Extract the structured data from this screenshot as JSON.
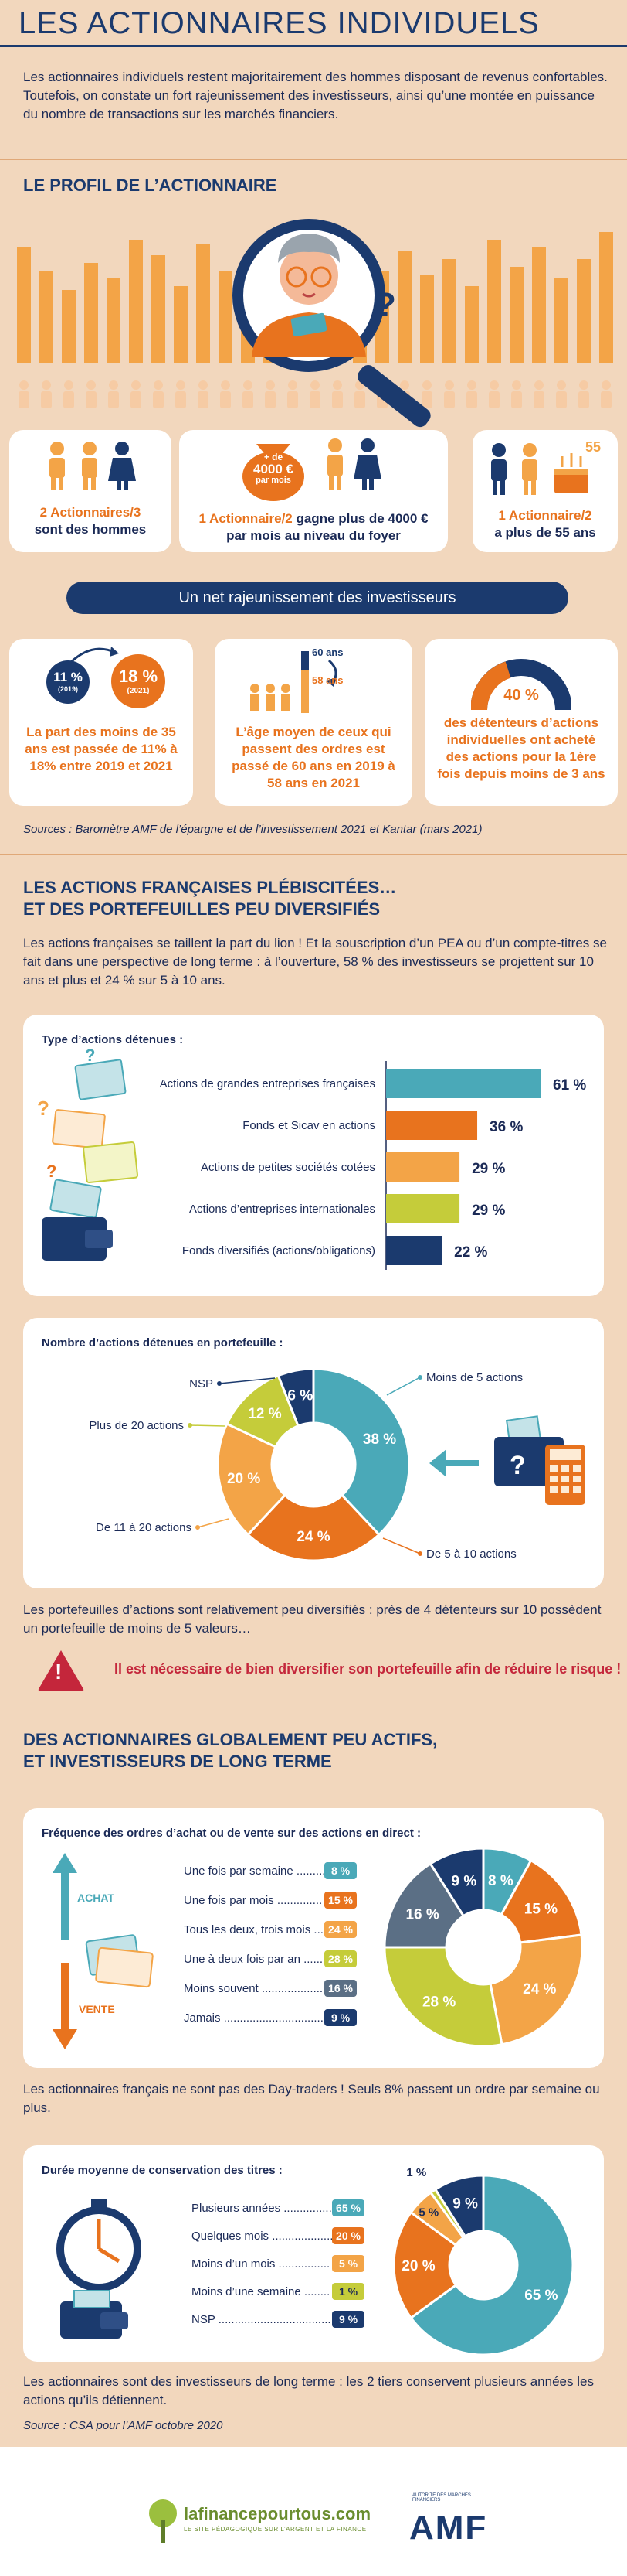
{
  "header": {
    "title": "LES ACTIONNAIRES INDIVIDUELS",
    "intro": "Les actionnaires individuels restent majoritairement des hommes disposant de revenus confortables. Toutefois, on constate un fort rajeunissement des investisseurs, ainsi qu’une montée en puissance du nombre de transactions sur les marchés financiers."
  },
  "profile": {
    "heading": "LE PROFIL DE L’ACTIONNAIRE",
    "question_mark": "?",
    "stat1": {
      "strong": "2 Actionnaires/3",
      "rest": "sont des hommes"
    },
    "bag": {
      "line1": "+ de",
      "line2": "4000 €",
      "line3": "par mois"
    },
    "stat2": {
      "strong": "1 Actionnaire/2",
      "rest": " gagne plus de 4000 € par mois au niveau du foyer"
    },
    "stat3": {
      "strong": "1 Actionnaire/2",
      "rest": "a plus de 55 ans"
    },
    "banner": "Un net rajeunissement des investisseurs",
    "young": {
      "v2019": "11 %",
      "y2019": "(2019)",
      "v2021": "18 %",
      "y2021": "(2021)",
      "text": "La part des moins de 35 ans est passée de 11% à 18% entre 2019 et 2021"
    },
    "age": {
      "a60": "60 ans",
      "a58": "58 ans",
      "text": "L’âge moyen de ceux qui passent des ordres est passé de 60 ans en 2019 à 58 ans en 2021"
    },
    "new": {
      "pct": "40 %",
      "text": "des détenteurs d’actions individuelles ont acheté des actions pour la 1ère fois depuis moins de 3 ans"
    },
    "source": "Sources : Baromètre AMF de l’épargne et de l’investissement 2021 et Kantar (mars 2021)"
  },
  "section2": {
    "heading1": "LES ACTIONS FRANÇAISES PLÉBISCITÉES…",
    "heading2": "ET DES PORTEFEUILLES PEU DIVERSIFIÉS",
    "intro": "Les actions françaises se taillent la part du lion ! Et la souscription d’un PEA ou d’un compte-titres se fait dans une perspective de long terme : à l’ouverture, 58 % des investisseurs se projettent sur 10 ans et plus et 24 % sur 5 à 10 ans.",
    "after": "Les portefeuilles d’actions sont relativement peu diversifiés : près de 4 détenteurs sur 10 possèdent un portefeuille de moins de 5 valeurs…",
    "warning": "Il est nécessaire de bien diversifier son portefeuille afin de réduire le risque !",
    "warning_mark": "!"
  },
  "section3": {
    "heading1": "DES ACTIONNAIRES GLOBALEMENT PEU ACTIFS,",
    "heading2": "ET INVESTISSEURS DE LONG TERME",
    "achat": "ACHAT",
    "vente": "VENTE",
    "after1": "Les actionnaires français ne sont pas des Day-traders ! Seuls 8% passent un ordre par semaine ou plus.",
    "after2": "Les actionnaires sont des investisseurs de long terme : les 2 tiers conservent plusieurs années les actions qu’ils détiennent.",
    "source": "Source : CSA pour l’AMF octobre 2020"
  },
  "footer": {
    "logo1_main": "lafinancepourtous.com",
    "logo1_sub": "LE SITE PÉDAGOGIQUE SUR L’ARGENT ET LA FINANCE",
    "logo2_top": "AUTORITÉ DES MARCHÉS FINANCIERS",
    "logo2_main": "AMF"
  },
  "colors": {
    "navy": "#1b3a6e",
    "orange": "#e8731e",
    "lightorange": "#f3a447",
    "teal": "#4aa9b8",
    "lime": "#c5cc3a",
    "beige": "#f2d7bd"
  },
  "chart_data": [
    {
      "type": "bar",
      "title": "Type d’actions détenues :",
      "categories": [
        "Actions de grandes entreprises françaises",
        "Fonds et Sicav en actions",
        "Actions de petites sociétés cotées",
        "Actions d’entreprises internationales",
        "Fonds diversifiés (actions/obligations)"
      ],
      "values": [
        61,
        36,
        29,
        29,
        22
      ],
      "labels": [
        "61 %",
        "36 %",
        "29 %",
        "29 %",
        "22 %"
      ],
      "colors": [
        "#4aa9b8",
        "#e8731e",
        "#f3a447",
        "#c5cc3a",
        "#1b3a6e"
      ],
      "orientation": "horizontal"
    },
    {
      "type": "pie",
      "title": "Nombre d’actions détenues en portefeuille :",
      "categories": [
        "Moins de 5 actions",
        "De 5 à 10 actions",
        "De 11 à 20 actions",
        "Plus de 20 actions",
        "NSP"
      ],
      "values": [
        38,
        24,
        20,
        12,
        6
      ],
      "labels": [
        "38 %",
        "24 %",
        "20 %",
        "12 %",
        "6 %"
      ],
      "colors": [
        "#4aa9b8",
        "#e8731e",
        "#f3a447",
        "#c5cc3a",
        "#1b3a6e"
      ]
    },
    {
      "type": "pie",
      "title": "Fréquence des ordres d’achat ou de vente sur des actions en direct :",
      "categories": [
        "Une fois par semaine",
        "Une fois par mois",
        "Tous les deux, trois mois",
        "Une à deux fois par an",
        "Moins souvent",
        "Jamais"
      ],
      "legend_labels": [
        "Une fois par semaine .........",
        "Une fois par mois ..............",
        "Tous les deux, trois mois ...",
        "Une à deux fois par an ......",
        "Moins souvent ...................",
        "Jamais ...............................",
        ""
      ],
      "values": [
        8,
        15,
        24,
        28,
        16,
        9
      ],
      "labels": [
        "8 %",
        "15 %",
        "24 %",
        "28 %",
        "16 %",
        "9 %"
      ],
      "colors": [
        "#4aa9b8",
        "#e8731e",
        "#f3a447",
        "#c5cc3a",
        "#5b6f85",
        "#1b3a6e"
      ]
    },
    {
      "type": "pie",
      "title": "Durée moyenne de conservation des titres :",
      "categories": [
        "Plusieurs années",
        "Quelques mois",
        "Moins d’un mois",
        "Moins d’une semaine",
        "NSP"
      ],
      "legend_labels": [
        "Plusieurs années ...............",
        "Quelques mois ....................",
        "Moins d’un mois ................",
        "Moins d’une semaine ........",
        "NSP ......................................"
      ],
      "values": [
        65,
        20,
        5,
        1,
        9
      ],
      "labels": [
        "65 %",
        "20 %",
        "5 %",
        "1 %",
        "9 %"
      ],
      "colors": [
        "#4aa9b8",
        "#e8731e",
        "#f3a447",
        "#c5cc3a",
        "#1b3a6e"
      ]
    }
  ]
}
